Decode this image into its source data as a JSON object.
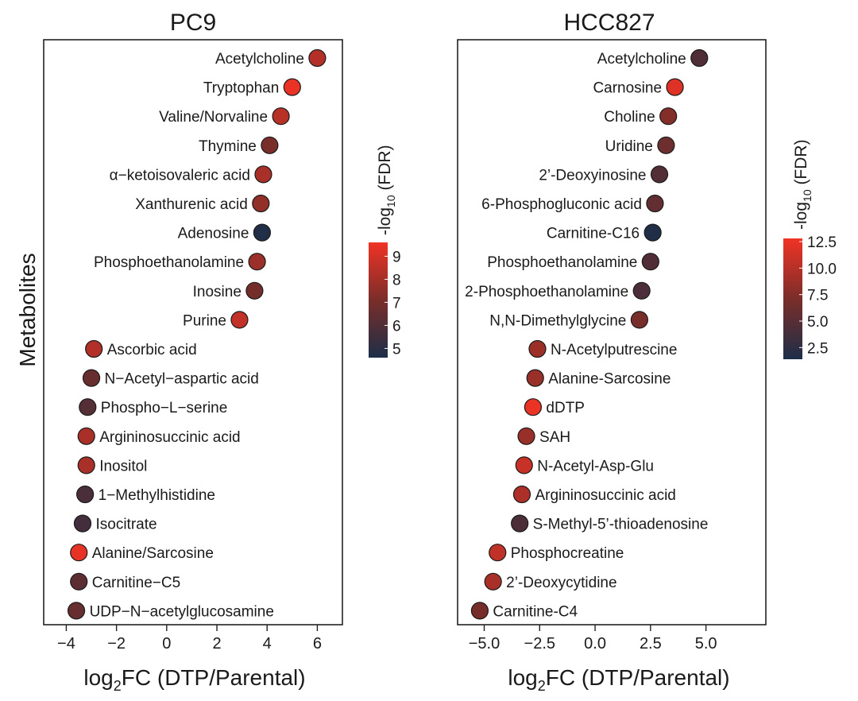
{
  "ylabel": "Metabolites",
  "colormap": {
    "low": "#1d2e48",
    "mid": "#7a2e2a",
    "high": "#f03325"
  },
  "chart_data": [
    {
      "type": "scatter",
      "title": "PC9",
      "xlabel": "log2FC (DTP/Parental)",
      "xlabel_main": "log",
      "xlabel_sub": "2",
      "xlabel_rest": "FC (DTP/Parental)",
      "ylabel": "Metabolites",
      "xlim": [
        -4.9,
        7.0
      ],
      "xticks": [
        -4,
        -2,
        0,
        2,
        4,
        6
      ],
      "xtick_labels": [
        "−4",
        "−2",
        "0",
        "2",
        "4",
        "6"
      ],
      "legend": {
        "title": "-log10 (FDR)",
        "title_main": "-log",
        "title_sub": "10",
        "title_rest": " (FDR)",
        "range": [
          4.6,
          9.6
        ],
        "ticks": [
          5,
          6,
          7,
          8,
          9
        ],
        "tick_labels": [
          "5",
          "6",
          "7",
          "8",
          "9"
        ]
      },
      "points": [
        {
          "label": "Acetylcholine",
          "x": 6.0,
          "fdr": 8.3
        },
        {
          "label": "Tryptophan",
          "x": 5.0,
          "fdr": 9.5
        },
        {
          "label": "Valine/Norvaline",
          "x": 4.55,
          "fdr": 8.4
        },
        {
          "label": "Thymine",
          "x": 4.1,
          "fdr": 7.1
        },
        {
          "label": "α−ketoisovaleric acid",
          "x": 3.85,
          "fdr": 8.1
        },
        {
          "label": "Xanthurenic acid",
          "x": 3.75,
          "fdr": 7.6
        },
        {
          "label": "Adenosine",
          "x": 3.8,
          "fdr": 4.7
        },
        {
          "label": "Phosphoethanolamine",
          "x": 3.6,
          "fdr": 7.8
        },
        {
          "label": "Inosine",
          "x": 3.5,
          "fdr": 6.9
        },
        {
          "label": "Purine",
          "x": 2.9,
          "fdr": 8.6
        },
        {
          "label": "Ascorbic acid",
          "x": -2.9,
          "fdr": 8.3
        },
        {
          "label": "N−Acetyl−aspartic acid",
          "x": -3.0,
          "fdr": 6.6
        },
        {
          "label": "Phospho−L−serine",
          "x": -3.15,
          "fdr": 6.1
        },
        {
          "label": "Argininosuccinic acid",
          "x": -3.2,
          "fdr": 8.1
        },
        {
          "label": "Inositol",
          "x": -3.2,
          "fdr": 8.1
        },
        {
          "label": "1−Methylhistidine",
          "x": -3.25,
          "fdr": 5.8
        },
        {
          "label": "Isocitrate",
          "x": -3.35,
          "fdr": 5.6
        },
        {
          "label": "Alanine/Sarcosine",
          "x": -3.5,
          "fdr": 9.4
        },
        {
          "label": "Carnitine−C5",
          "x": -3.5,
          "fdr": 6.3
        },
        {
          "label": "UDP−N−acetylglucosamine",
          "x": -3.6,
          "fdr": 6.6
        }
      ]
    },
    {
      "type": "scatter",
      "title": "HCC827",
      "xlabel": "log2FC (DTP/Parental)",
      "xlabel_main": "log",
      "xlabel_sub": "2",
      "xlabel_rest": "FC (DTP/Parental)",
      "ylabel": "",
      "xlim": [
        -6.2,
        7.7
      ],
      "xticks": [
        -5.0,
        -2.5,
        0.0,
        2.5,
        5.0
      ],
      "xtick_labels": [
        "−5.0",
        "−2.5",
        "0.0",
        "2.5",
        "5.0"
      ],
      "legend": {
        "title": "-log10 (FDR)",
        "title_main": "-log",
        "title_sub": "10",
        "title_rest": " (FDR)",
        "range": [
          1.4,
          12.8
        ],
        "ticks": [
          2.5,
          5.0,
          7.5,
          10.0,
          12.5
        ],
        "tick_labels": [
          "2.5",
          "5.0",
          "7.5",
          "10.0",
          "12.5"
        ]
      },
      "points": [
        {
          "label": "Acetylcholine",
          "x": 4.7,
          "fdr": 4.5
        },
        {
          "label": "Carnosine",
          "x": 3.6,
          "fdr": 12.0
        },
        {
          "label": "Choline",
          "x": 3.3,
          "fdr": 7.6
        },
        {
          "label": "Uridine",
          "x": 3.2,
          "fdr": 6.3
        },
        {
          "label": "2’-Deoxyinosine",
          "x": 2.9,
          "fdr": 4.7
        },
        {
          "label": "6-Phosphogluconic acid",
          "x": 2.7,
          "fdr": 5.7
        },
        {
          "label": "Carnitine-C16",
          "x": 2.6,
          "fdr": 1.6
        },
        {
          "label": "Phosphoethanolamine",
          "x": 2.5,
          "fdr": 4.6
        },
        {
          "label": "2-Phosphoethanolamine",
          "x": 2.1,
          "fdr": 4.2
        },
        {
          "label": "N,N-Dimethylglycine",
          "x": 2.0,
          "fdr": 7.0
        },
        {
          "label": "N-Acetylputrescine",
          "x": -2.6,
          "fdr": 8.8
        },
        {
          "label": "Alanine-Sarcosine",
          "x": -2.7,
          "fdr": 8.6
        },
        {
          "label": "dDTP",
          "x": -2.8,
          "fdr": 12.5
        },
        {
          "label": "SAH",
          "x": -3.1,
          "fdr": 8.6
        },
        {
          "label": "N-Acetyl-Asp-Glu",
          "x": -3.2,
          "fdr": 10.8
        },
        {
          "label": "Argininosuccinic acid",
          "x": -3.3,
          "fdr": 9.5
        },
        {
          "label": "S-Methyl-5’-thioadenosine",
          "x": -3.4,
          "fdr": 4.3
        },
        {
          "label": "Phosphocreatine",
          "x": -4.4,
          "fdr": 10.5
        },
        {
          "label": "2’-Deoxycytidine",
          "x": -4.6,
          "fdr": 9.3
        },
        {
          "label": "Carnitine-C4",
          "x": -5.2,
          "fdr": 6.9
        }
      ]
    }
  ]
}
